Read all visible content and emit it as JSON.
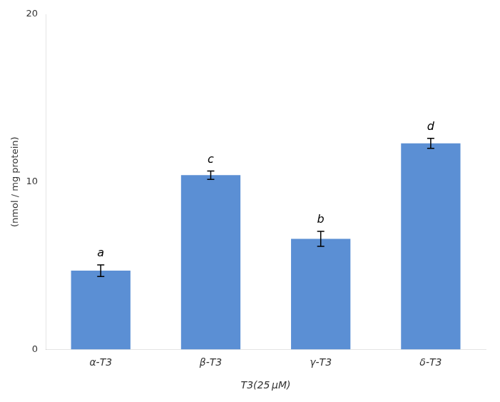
{
  "chart_data": {
    "type": "bar",
    "categories": [
      "α-T3",
      "β-T3",
      "γ-T3",
      "δ-T3"
    ],
    "values": [
      4.7,
      10.4,
      6.6,
      12.3
    ],
    "errors": [
      0.35,
      0.25,
      0.45,
      0.3
    ],
    "annotations": [
      "a",
      "c",
      "b",
      "d"
    ],
    "color": "#5b8fd4",
    "ylabel": "(nmol / mg protein)",
    "xlabel": "T3(25 μM)",
    "ylim": [
      0,
      20
    ],
    "yticks": [
      0,
      10,
      20
    ],
    "grid": false
  }
}
